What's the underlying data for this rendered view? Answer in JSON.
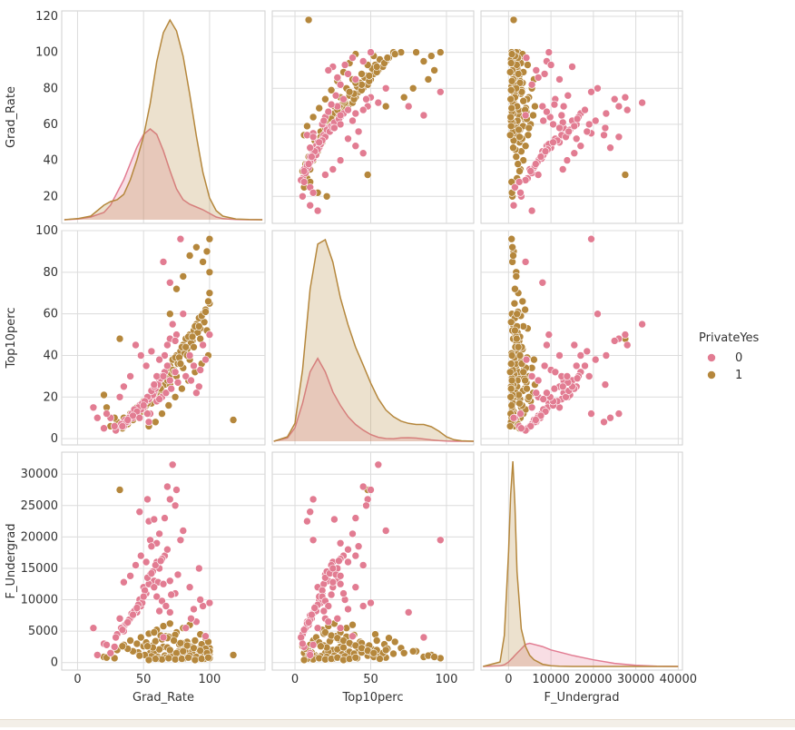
{
  "chart_data": {
    "type": "pairplot",
    "variables": [
      "Grad_Rate",
      "Top10perc",
      "F_Undergrad"
    ],
    "hue": {
      "title": "PrivateYes",
      "levels": [
        {
          "label": "0",
          "color": "#e27c92"
        },
        {
          "label": "1",
          "color": "#b5873c"
        }
      ]
    },
    "axes": {
      "Grad_Rate": {
        "lim": [
          -12,
          142
        ],
        "ticks": [
          0,
          50,
          100
        ],
        "tick_labels": [
          "0",
          "50",
          "100"
        ],
        "ylim": [
          5,
          123
        ],
        "yticks": [
          20,
          40,
          60,
          80,
          100,
          120
        ],
        "ytick_labels": [
          "20",
          "40",
          "60",
          "80",
          "100",
          "120"
        ]
      },
      "Top10perc": {
        "lim": [
          -15,
          118
        ],
        "ticks": [
          0,
          50,
          100
        ],
        "tick_labels": [
          "0",
          "50",
          "100"
        ],
        "ylim": [
          -3,
          100
        ],
        "yticks": [
          0,
          20,
          40,
          60,
          80,
          100
        ],
        "ytick_labels": [
          "0",
          "20",
          "40",
          "60",
          "80",
          "100"
        ]
      },
      "F_Undergrad": {
        "lim": [
          -6500,
          41000
        ],
        "ticks": [
          0,
          10000,
          20000,
          30000,
          40000
        ],
        "tick_labels": [
          "0",
          "10000",
          "20000",
          "30000",
          "40000"
        ],
        "ylim": [
          -1200,
          33500
        ],
        "yticks": [
          0,
          5000,
          10000,
          15000,
          20000,
          25000,
          30000
        ],
        "ytick_labels": [
          "0",
          "5000",
          "10000",
          "15000",
          "20000",
          "25000",
          "30000"
        ]
      }
    },
    "kde": {
      "Grad_Rate": {
        "x": [
          -10,
          0,
          10,
          20,
          25,
          30,
          35,
          40,
          45,
          50,
          55,
          60,
          65,
          70,
          75,
          80,
          85,
          90,
          95,
          100,
          105,
          110,
          120,
          130,
          140
        ],
        "density": {
          "0": [
            0,
            0.0004,
            0.0015,
            0.004,
            0.008,
            0.015,
            0.022,
            0.031,
            0.04,
            0.047,
            0.05,
            0.047,
            0.038,
            0.027,
            0.017,
            0.011,
            0.0085,
            0.007,
            0.0055,
            0.0035,
            0.0015,
            0.0006,
            0.0001,
            0,
            0
          ],
          "1": [
            0,
            0.0006,
            0.002,
            0.008,
            0.01,
            0.011,
            0.014,
            0.022,
            0.033,
            0.046,
            0.064,
            0.087,
            0.103,
            0.11,
            0.104,
            0.09,
            0.069,
            0.046,
            0.026,
            0.012,
            0.005,
            0.002,
            0.0004,
            0.0001,
            0
          ]
        }
      },
      "Top10perc": {
        "x": [
          -14,
          -5,
          0,
          5,
          10,
          15,
          20,
          25,
          30,
          35,
          40,
          45,
          50,
          55,
          60,
          65,
          70,
          75,
          80,
          85,
          90,
          95,
          100,
          105,
          110,
          118
        ],
        "density": {
          "0": [
            0,
            0.0015,
            0.006,
            0.017,
            0.031,
            0.037,
            0.031,
            0.022,
            0.016,
            0.011,
            0.0075,
            0.005,
            0.003,
            0.0018,
            0.0012,
            0.0011,
            0.0015,
            0.0016,
            0.0014,
            0.001,
            0.0006,
            0.0003,
            0.0001,
            0,
            0,
            0
          ],
          "1": [
            0,
            0.002,
            0.008,
            0.032,
            0.068,
            0.088,
            0.09,
            0.08,
            0.064,
            0.052,
            0.042,
            0.034,
            0.026,
            0.019,
            0.014,
            0.011,
            0.009,
            0.008,
            0.0075,
            0.0075,
            0.0065,
            0.0045,
            0.002,
            0.0007,
            0.0002,
            0
          ]
        }
      },
      "F_Undergrad": {
        "x": [
          -6000,
          -2000,
          -1000,
          0,
          500,
          1000,
          1500,
          2000,
          3000,
          4000,
          5000,
          6000,
          8000,
          10000,
          12000,
          15000,
          20000,
          25000,
          30000,
          35000,
          40000
        ],
        "density": {
          "0": [
            0,
            3e-05,
            8e-05,
            0.0002,
            0.0003,
            0.0004,
            0.0005,
            0.0006,
            0.0008,
            0.001,
            0.00105,
            0.001,
            0.0009,
            0.00075,
            0.00065,
            0.0005,
            0.0003,
            0.00014,
            5e-05,
            1e-05,
            0
          ],
          "1": [
            0,
            0.0002,
            0.0014,
            0.0052,
            0.0078,
            0.0093,
            0.0073,
            0.0043,
            0.0017,
            0.0009,
            0.0005,
            0.0003,
            0.0001,
            3e-05,
            1e-05,
            0,
            0,
            0,
            0,
            0,
            0
          ]
        }
      }
    },
    "points": {
      "0": [
        [
          45,
          12,
          8000
        ],
        [
          50,
          15,
          12000
        ],
        [
          38,
          8,
          6500
        ],
        [
          55,
          20,
          14000
        ],
        [
          42,
          10,
          7500
        ],
        [
          60,
          25,
          16000
        ],
        [
          35,
          6,
          5000
        ],
        [
          48,
          14,
          9000
        ],
        [
          52,
          18,
          11000
        ],
        [
          40,
          11,
          7000
        ],
        [
          58,
          22,
          13000
        ],
        [
          30,
          5,
          4500
        ],
        [
          44,
          13,
          8500
        ],
        [
          62,
          28,
          15000
        ],
        [
          36,
          9,
          6000
        ],
        [
          54,
          19,
          12500
        ],
        [
          47,
          16,
          10000
        ],
        [
          41,
          12,
          7800
        ],
        [
          66,
          32,
          17000
        ],
        [
          33,
          7,
          5500
        ],
        [
          57,
          21,
          14500
        ],
        [
          49,
          17,
          9500
        ],
        [
          39,
          10,
          6800
        ],
        [
          64,
          30,
          16500
        ],
        [
          46,
          15,
          9200
        ],
        [
          53,
          20,
          13500
        ],
        [
          37,
          8,
          6200
        ],
        [
          59,
          24,
          15500
        ],
        [
          43,
          14,
          8200
        ],
        [
          51,
          18,
          11500
        ],
        [
          61,
          26,
          12800
        ],
        [
          34,
          6,
          5200
        ],
        [
          68,
          35,
          18000
        ],
        [
          45,
          13,
          8700
        ],
        [
          56,
          23,
          14200
        ],
        [
          29,
          4,
          4000
        ],
        [
          50,
          16,
          10500
        ],
        [
          42,
          11,
          7600
        ],
        [
          63,
          29,
          16200
        ],
        [
          38,
          9,
          6400
        ],
        [
          55,
          12,
          19500
        ],
        [
          47,
          10,
          24000
        ],
        [
          70,
          48,
          26000
        ],
        [
          72,
          55,
          31500
        ],
        [
          66,
          40,
          23000
        ],
        [
          68,
          45,
          28000
        ],
        [
          75,
          50,
          27500
        ],
        [
          54,
          8,
          22500
        ],
        [
          60,
          30,
          19000
        ],
        [
          80,
          60,
          21000
        ],
        [
          78,
          96,
          19500
        ],
        [
          65,
          85,
          4000
        ],
        [
          70,
          75,
          8000
        ],
        [
          25,
          10,
          1500
        ],
        [
          28,
          6,
          2500
        ],
        [
          20,
          5,
          3000
        ],
        [
          12,
          15,
          5500
        ],
        [
          32,
          20,
          7000
        ],
        [
          15,
          10,
          1200
        ],
        [
          22,
          12,
          2800
        ],
        [
          85,
          40,
          12000
        ],
        [
          88,
          35,
          8500
        ],
        [
          92,
          25,
          15000
        ],
        [
          95,
          45,
          9000
        ],
        [
          100,
          50,
          9500
        ],
        [
          82,
          30,
          5500
        ],
        [
          90,
          22,
          6500
        ],
        [
          97,
          38,
          4200
        ],
        [
          86,
          28,
          7000
        ],
        [
          93,
          33,
          10000
        ],
        [
          60,
          18,
          10500
        ],
        [
          64,
          20,
          9800
        ],
        [
          58,
          25,
          12000
        ],
        [
          70,
          28,
          13000
        ],
        [
          74,
          32,
          11000
        ],
        [
          67,
          22,
          9000
        ],
        [
          76,
          27,
          14000
        ],
        [
          62,
          19,
          8200
        ],
        [
          71,
          24,
          10800
        ],
        [
          65,
          30,
          12500
        ],
        [
          48,
          40,
          17000
        ],
        [
          52,
          35,
          16000
        ],
        [
          44,
          45,
          15500
        ],
        [
          56,
          42,
          18500
        ],
        [
          40,
          30,
          13800
        ],
        [
          35,
          25,
          12800
        ],
        [
          74,
          47,
          25000
        ],
        [
          62,
          38,
          20500
        ],
        [
          58,
          26,
          22800
        ],
        [
          53,
          12,
          26000
        ]
      ],
      "1": [
        [
          55,
          20,
          1500
        ],
        [
          60,
          25,
          2000
        ],
        [
          65,
          30,
          2500
        ],
        [
          70,
          35,
          1800
        ],
        [
          75,
          40,
          1200
        ],
        [
          80,
          45,
          2200
        ],
        [
          85,
          50,
          1600
        ],
        [
          90,
          55,
          1000
        ],
        [
          95,
          60,
          800
        ],
        [
          100,
          65,
          1400
        ],
        [
          50,
          18,
          2600
        ],
        [
          45,
          15,
          3000
        ],
        [
          58,
          22,
          1700
        ],
        [
          62,
          28,
          2100
        ],
        [
          68,
          32,
          2400
        ],
        [
          72,
          38,
          1300
        ],
        [
          78,
          42,
          1900
        ],
        [
          82,
          48,
          1100
        ],
        [
          88,
          52,
          900
        ],
        [
          92,
          58,
          1500
        ],
        [
          40,
          12,
          3500
        ],
        [
          35,
          10,
          2800
        ],
        [
          30,
          8,
          2000
        ],
        [
          25,
          6,
          1500
        ],
        [
          48,
          14,
          4000
        ],
        [
          52,
          16,
          3200
        ],
        [
          57,
          19,
          2700
        ],
        [
          63,
          24,
          3800
        ],
        [
          67,
          27,
          4200
        ],
        [
          73,
          33,
          3600
        ],
        [
          77,
          37,
          2900
        ],
        [
          83,
          43,
          3300
        ],
        [
          87,
          47,
          2500
        ],
        [
          93,
          53,
          4500
        ],
        [
          97,
          62,
          3900
        ],
        [
          100,
          70,
          2300
        ],
        [
          100,
          80,
          1800
        ],
        [
          98,
          90,
          1200
        ],
        [
          100,
          96,
          700
        ],
        [
          95,
          85,
          900
        ],
        [
          61,
          21,
          900
        ],
        [
          66,
          26,
          1100
        ],
        [
          71,
          31,
          1300
        ],
        [
          76,
          36,
          1700
        ],
        [
          81,
          41,
          700
        ],
        [
          86,
          46,
          1900
        ],
        [
          91,
          51,
          2100
        ],
        [
          96,
          56,
          600
        ],
        [
          56,
          17,
          1000
        ],
        [
          51,
          13,
          1200
        ],
        [
          46,
          11,
          1600
        ],
        [
          42,
          9,
          1800
        ],
        [
          38,
          7,
          2200
        ],
        [
          34,
          5,
          2600
        ],
        [
          60,
          18,
          5200
        ],
        [
          65,
          22,
          5800
        ],
        [
          70,
          26,
          6200
        ],
        [
          75,
          30,
          4800
        ],
        [
          80,
          34,
          5500
        ],
        [
          85,
          38,
          6000
        ],
        [
          59,
          23,
          3400
        ],
        [
          64,
          29,
          3700
        ],
        [
          69,
          34,
          4100
        ],
        [
          74,
          39,
          4400
        ],
        [
          79,
          44,
          3100
        ],
        [
          84,
          49,
          2700
        ],
        [
          89,
          54,
          3500
        ],
        [
          94,
          59,
          2900
        ],
        [
          99,
          66,
          3300
        ],
        [
          54,
          19,
          4600
        ],
        [
          62,
          25,
          600
        ],
        [
          67,
          29,
          800
        ],
        [
          72,
          33,
          1000
        ],
        [
          77,
          39,
          1400
        ],
        [
          82,
          44,
          1600
        ],
        [
          87,
          49,
          1800
        ],
        [
          92,
          54,
          2000
        ],
        [
          97,
          61,
          2200
        ],
        [
          57,
          21,
          2400
        ],
        [
          53,
          17,
          2600
        ],
        [
          58,
          20,
          4800
        ],
        [
          63,
          24,
          4300
        ],
        [
          68,
          28,
          3900
        ],
        [
          73,
          32,
          3500
        ],
        [
          78,
          36,
          3100
        ],
        [
          83,
          40,
          2700
        ],
        [
          88,
          44,
          2300
        ],
        [
          93,
          48,
          1900
        ],
        [
          98,
          52,
          1500
        ],
        [
          47,
          12,
          1100
        ],
        [
          20,
          21,
          900
        ],
        [
          22,
          15,
          800
        ],
        [
          28,
          10,
          700
        ],
        [
          32,
          48,
          27500
        ],
        [
          118,
          9,
          1200
        ],
        [
          70,
          60,
          2000
        ],
        [
          75,
          72,
          1500
        ],
        [
          80,
          78,
          1800
        ],
        [
          85,
          88,
          1100
        ],
        [
          90,
          92,
          900
        ],
        [
          64,
          12,
          500
        ],
        [
          69,
          16,
          700
        ],
        [
          74,
          20,
          500
        ],
        [
          79,
          24,
          600
        ],
        [
          84,
          28,
          800
        ],
        [
          89,
          32,
          400
        ],
        [
          94,
          36,
          600
        ],
        [
          99,
          40,
          800
        ],
        [
          59,
          8,
          600
        ],
        [
          54,
          6,
          400
        ]
      ]
    },
    "axis_titles": {
      "x": [
        "Grad_Rate",
        "Top10perc",
        "F_Undergrad"
      ],
      "y": [
        "Grad_Rate",
        "Top10perc",
        "F_Undergrad"
      ]
    }
  }
}
